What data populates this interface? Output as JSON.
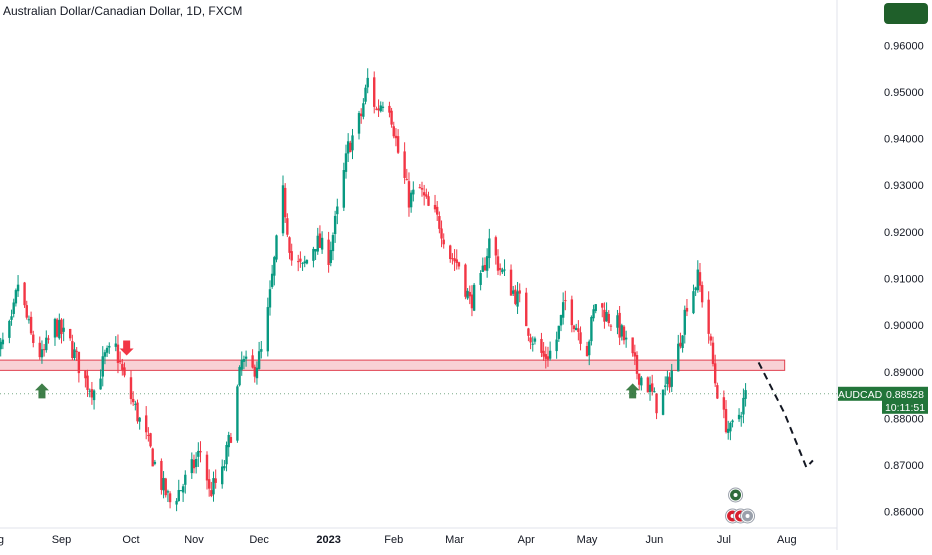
{
  "header": {
    "symbol_title": "Australian Dollar/Canadian Dollar, 1D, FXCM",
    "badge_color": "#1f5f2a"
  },
  "price_label": {
    "symbol": "AUDCAD",
    "price": "0.88528",
    "countdown": "10:11:51",
    "color": "#22753a"
  },
  "colors": {
    "up": "#089981",
    "down": "#f23645",
    "zone_fill": "#f5c2c7",
    "zone_stroke": "#e0404f",
    "arrow_up": "#3f7f49",
    "arrow_down": "#f23645",
    "projection": "#131722"
  },
  "icons": [
    "au-flag-event-icon",
    "ca-flag-event-icon"
  ],
  "chart_data": {
    "type": "candlestick",
    "title": "Australian Dollar/Canadian Dollar, 1D, FXCM",
    "symbol": "AUDCAD",
    "last_price": 0.88528,
    "y_ticks": [
      "0.96000",
      "0.95000",
      "0.94000",
      "0.93000",
      "0.92000",
      "0.91000",
      "0.90000",
      "0.89000",
      "0.88000",
      "0.87000",
      "0.86000"
    ],
    "ylim": [
      0.8565,
      0.9665
    ],
    "x_ticks": [
      {
        "label": "Aug",
        "date": "2022-08-01",
        "bold": false
      },
      {
        "label": "Sep",
        "date": "2022-09-01",
        "bold": false
      },
      {
        "label": "Oct",
        "date": "2022-10-03",
        "bold": false
      },
      {
        "label": "Nov",
        "date": "2022-11-01",
        "bold": false
      },
      {
        "label": "Dec",
        "date": "2022-12-01",
        "bold": false
      },
      {
        "label": "2023",
        "date": "2023-01-02",
        "bold": true
      },
      {
        "label": "Feb",
        "date": "2023-02-01",
        "bold": false
      },
      {
        "label": "Mar",
        "date": "2023-03-01",
        "bold": false
      },
      {
        "label": "Apr",
        "date": "2023-04-03",
        "bold": false
      },
      {
        "label": "May",
        "date": "2023-05-01",
        "bold": false
      },
      {
        "label": "Jun",
        "date": "2023-06-01",
        "bold": false
      },
      {
        "label": "Jul",
        "date": "2023-07-03",
        "bold": false
      },
      {
        "label": "Aug",
        "date": "2023-08-01",
        "bold": false
      }
    ],
    "xlim": [
      "2022-07-31",
      "2023-08-31"
    ],
    "path": [
      [
        "2022-08-01",
        0.892
      ],
      [
        "2022-08-09",
        0.9
      ],
      [
        "2022-08-12",
        0.909
      ],
      [
        "2022-08-18",
        0.8975
      ],
      [
        "2022-08-23",
        0.893
      ],
      [
        "2022-08-29",
        0.9
      ],
      [
        "2022-09-05",
        0.896
      ],
      [
        "2022-09-12",
        0.888
      ],
      [
        "2022-09-16",
        0.886
      ],
      [
        "2022-09-21",
        0.893
      ],
      [
        "2022-09-26",
        0.895
      ],
      [
        "2022-09-30",
        0.888
      ],
      [
        "2022-10-05",
        0.882
      ],
      [
        "2022-10-12",
        0.873
      ],
      [
        "2022-10-17",
        0.866
      ],
      [
        "2022-10-21",
        0.862
      ],
      [
        "2022-10-26",
        0.865
      ],
      [
        "2022-11-01",
        0.87
      ],
      [
        "2022-11-05",
        0.874
      ],
      [
        "2022-11-08",
        0.864
      ],
      [
        "2022-11-14",
        0.868
      ],
      [
        "2022-11-18",
        0.877
      ],
      [
        "2022-11-23",
        0.892
      ],
      [
        "2022-11-28",
        0.89
      ],
      [
        "2022-12-03",
        0.895
      ],
      [
        "2022-12-07",
        0.91
      ],
      [
        "2022-12-12",
        0.928
      ],
      [
        "2022-12-16",
        0.914
      ],
      [
        "2022-12-21",
        0.912
      ],
      [
        "2022-12-27",
        0.918
      ],
      [
        "2023-01-02",
        0.915
      ],
      [
        "2023-01-06",
        0.924
      ],
      [
        "2023-01-11",
        0.938
      ],
      [
        "2023-01-17",
        0.945
      ],
      [
        "2023-01-20",
        0.9525
      ],
      [
        "2023-01-24",
        0.946
      ],
      [
        "2023-01-29",
        0.95
      ],
      [
        "2023-02-03",
        0.937
      ],
      [
        "2023-02-08",
        0.927
      ],
      [
        "2023-02-13",
        0.929
      ],
      [
        "2023-02-17",
        0.925
      ],
      [
        "2023-02-22",
        0.922
      ],
      [
        "2023-02-27",
        0.915
      ],
      [
        "2023-03-03",
        0.913
      ],
      [
        "2023-03-08",
        0.905
      ],
      [
        "2023-03-13",
        0.909
      ],
      [
        "2023-03-17",
        0.918
      ],
      [
        "2023-03-22",
        0.912
      ],
      [
        "2023-03-27",
        0.908
      ],
      [
        "2023-03-31",
        0.905
      ],
      [
        "2023-04-05",
        0.898
      ],
      [
        "2023-04-11",
        0.893
      ],
      [
        "2023-04-16",
        0.895
      ],
      [
        "2023-04-21",
        0.905
      ],
      [
        "2023-04-26",
        0.9
      ],
      [
        "2023-05-01",
        0.895
      ],
      [
        "2023-05-05",
        0.905
      ],
      [
        "2023-05-10",
        0.902
      ],
      [
        "2023-05-15",
        0.9
      ],
      [
        "2023-05-19",
        0.896
      ],
      [
        "2023-05-24",
        0.89
      ],
      [
        "2023-05-29",
        0.887
      ],
      [
        "2023-06-02",
        0.883
      ],
      [
        "2023-06-07",
        0.887
      ],
      [
        "2023-06-12",
        0.895
      ],
      [
        "2023-06-16",
        0.905
      ],
      [
        "2023-06-21",
        0.91
      ],
      [
        "2023-06-25",
        0.902
      ],
      [
        "2023-06-29",
        0.888
      ],
      [
        "2023-07-03",
        0.88
      ],
      [
        "2023-07-06",
        0.877
      ],
      [
        "2023-07-10",
        0.881
      ],
      [
        "2023-07-13",
        0.885
      ]
    ],
    "support_zone": {
      "from": "2022-07-31",
      "to": "2023-07-31",
      "low": 0.8903,
      "high": 0.8925
    },
    "markers": [
      {
        "kind": "arrow-up",
        "date": "2022-08-23",
        "price": 0.8875
      },
      {
        "kind": "arrow-down",
        "date": "2022-10-01",
        "price": 0.8935
      },
      {
        "kind": "arrow-up",
        "date": "2023-05-22",
        "price": 0.8875
      }
    ],
    "projection": [
      [
        "2023-07-19",
        0.892
      ],
      [
        "2023-07-31",
        0.881
      ],
      [
        "2023-08-10",
        0.8695
      ],
      [
        "2023-08-13",
        0.871
      ]
    ],
    "event_icons_date": "2023-07-07"
  }
}
